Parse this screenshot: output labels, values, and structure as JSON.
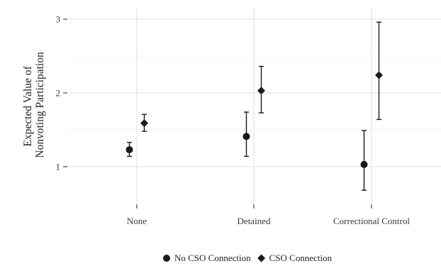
{
  "chart_data": {
    "type": "scatter",
    "title": "",
    "xlabel": "",
    "ylabel": [
      "Expected Value of",
      "Nonvoting Participation"
    ],
    "categories": [
      "None",
      "Detained",
      "Correctional Control"
    ],
    "ylim": [
      0.5,
      3.1
    ],
    "yticks": [
      1,
      2,
      3
    ],
    "grid": true,
    "legend_position": "bottom",
    "series": [
      {
        "name": "No CSO Connection",
        "marker": "circle",
        "color": "#1a1a1a",
        "values": [
          1.23,
          1.41,
          1.03
        ],
        "lower": [
          1.14,
          1.14,
          0.68
        ],
        "upper": [
          1.33,
          1.74,
          1.49
        ]
      },
      {
        "name": "CSO Connection",
        "marker": "diamond",
        "color": "#1a1a1a",
        "values": [
          1.59,
          2.03,
          2.24
        ],
        "lower": [
          1.48,
          1.73,
          1.64
        ],
        "upper": [
          1.71,
          2.36,
          2.96
        ]
      }
    ]
  }
}
